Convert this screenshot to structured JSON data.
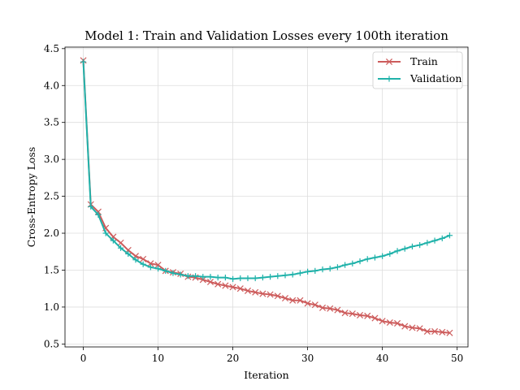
{
  "chart_data": {
    "type": "line",
    "title": "Model 1: Train and Validation Losses every 100th iteration",
    "xlabel": "Iteration",
    "ylabel": "Cross-Entropy Loss",
    "xlim": [
      -2.45,
      51.45
    ],
    "ylim": [
      0.46,
      4.52
    ],
    "xticks": [
      0,
      10,
      20,
      30,
      40,
      50
    ],
    "yticks": [
      0.5,
      1.0,
      1.5,
      2.0,
      2.5,
      3.0,
      3.5,
      4.0,
      4.5
    ],
    "xtick_labels": [
      "0",
      "10",
      "20",
      "30",
      "40",
      "50"
    ],
    "ytick_labels": [
      "0.5",
      "1.0",
      "1.5",
      "2.0",
      "2.5",
      "3.0",
      "3.5",
      "4.0",
      "4.5"
    ],
    "grid": true,
    "legend_position": "top-right",
    "x": [
      0,
      1,
      2,
      3,
      4,
      5,
      6,
      7,
      8,
      9,
      10,
      11,
      12,
      13,
      14,
      15,
      16,
      17,
      18,
      19,
      20,
      21,
      22,
      23,
      24,
      25,
      26,
      27,
      28,
      29,
      30,
      31,
      32,
      33,
      34,
      35,
      36,
      37,
      38,
      39,
      40,
      41,
      42,
      43,
      44,
      45,
      46,
      47,
      48,
      49
    ],
    "series": [
      {
        "name": "Train",
        "color": "#cd5c5c",
        "marker": "x",
        "values": [
          4.34,
          2.39,
          2.29,
          2.07,
          1.95,
          1.87,
          1.77,
          1.69,
          1.65,
          1.59,
          1.57,
          1.49,
          1.47,
          1.45,
          1.41,
          1.4,
          1.37,
          1.34,
          1.31,
          1.29,
          1.27,
          1.25,
          1.22,
          1.2,
          1.18,
          1.17,
          1.15,
          1.12,
          1.09,
          1.09,
          1.05,
          1.03,
          0.99,
          0.98,
          0.96,
          0.92,
          0.91,
          0.89,
          0.88,
          0.85,
          0.81,
          0.79,
          0.78,
          0.74,
          0.72,
          0.71,
          0.67,
          0.67,
          0.66,
          0.65
        ]
      },
      {
        "name": "Validation",
        "color": "#20b2aa",
        "marker": "+",
        "values": [
          4.32,
          2.36,
          2.25,
          2.0,
          1.9,
          1.8,
          1.72,
          1.64,
          1.58,
          1.54,
          1.52,
          1.49,
          1.46,
          1.44,
          1.42,
          1.42,
          1.41,
          1.41,
          1.4,
          1.4,
          1.38,
          1.39,
          1.39,
          1.39,
          1.4,
          1.41,
          1.42,
          1.43,
          1.44,
          1.46,
          1.48,
          1.49,
          1.51,
          1.52,
          1.54,
          1.57,
          1.59,
          1.62,
          1.65,
          1.67,
          1.69,
          1.72,
          1.76,
          1.79,
          1.82,
          1.84,
          1.87,
          1.9,
          1.93,
          1.97
        ]
      }
    ]
  }
}
